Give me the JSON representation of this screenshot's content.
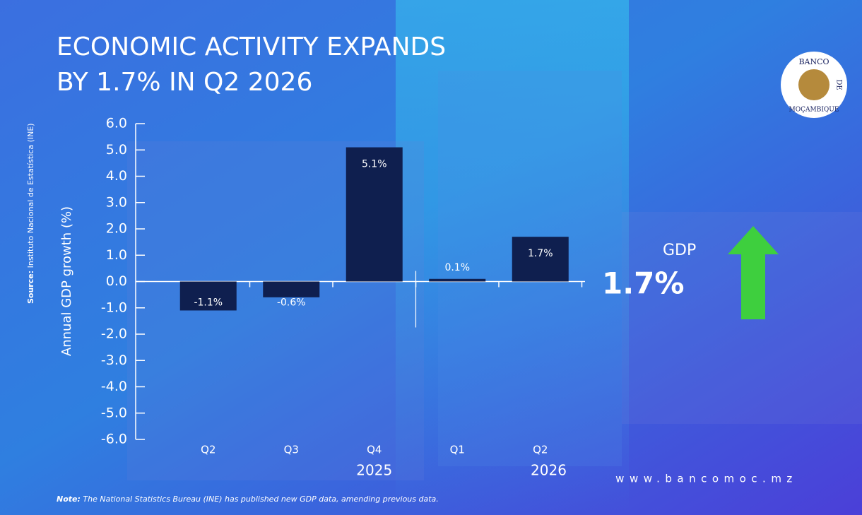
{
  "chart_data": {
    "type": "bar",
    "title_lines": [
      "ECONOMIC ACTIVITY EXPANDS",
      "BY 1.7% IN Q2 2026"
    ],
    "y_label": "Annual GDP growth (%)",
    "categories": [
      "Q2",
      "Q3",
      "Q4",
      "Q1",
      "Q2"
    ],
    "x_groups": [
      "2025",
      "2026"
    ],
    "values": [
      -1.1,
      -0.6,
      5.1,
      0.1,
      1.7
    ],
    "value_labels": [
      "-1.1%",
      "-0.6%",
      "5.1%",
      "0.1%",
      "1.7%"
    ],
    "color": "#0f1f4f",
    "ylim": [
      -6,
      6
    ],
    "yticks": [
      {
        "value": 6,
        "label": "6.0"
      },
      {
        "value": 5,
        "label": "5.0"
      },
      {
        "value": 4,
        "label": "4.0"
      },
      {
        "value": 3,
        "label": "3.0"
      },
      {
        "value": 2,
        "label": "2.0"
      },
      {
        "value": 1,
        "label": "1.0"
      },
      {
        "value": 0,
        "label": "0.0"
      },
      {
        "value": -1,
        "label": "-1.0"
      },
      {
        "value": -2,
        "label": "-2.0"
      },
      {
        "value": -3,
        "label": "-3.0"
      },
      {
        "value": -4,
        "label": "-4.0"
      },
      {
        "value": -5,
        "label": "-5.0"
      },
      {
        "value": -6,
        "label": "-6.0"
      }
    ],
    "callout": {
      "label": "GDP",
      "value": "1.7%"
    },
    "source": {
      "label": "Source:",
      "text": "Instituto Nacional de Estatística (INE)"
    },
    "note": {
      "label": "Note:",
      "text": "The National Statistics Bureau (INE) has published new GDP data, amending previous data."
    },
    "logo": [
      "BANCO",
      "DE",
      "MOÇAMBIQUE"
    ],
    "website": "www.bancomoc.mz"
  }
}
